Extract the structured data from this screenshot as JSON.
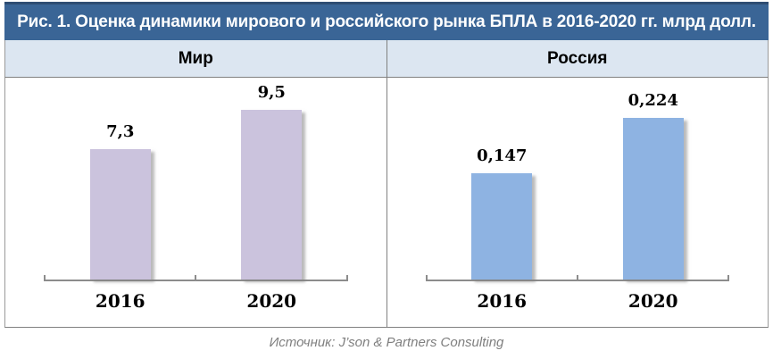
{
  "figure": {
    "title": "Рис. 1. Оценка динамики мирового и российского рынка БПЛА в 2016-2020 гг. млрд долл.",
    "source": "Источник: J’son & Partners Consulting"
  },
  "colors": {
    "title_bar_bg": "#3A6596",
    "title_bar_border": "#2E4D73",
    "title_text": "#FFFFFF",
    "header_bg": "#DCE6F1",
    "grid_border": "#808080",
    "axis": "#8C8C8C",
    "world_bar": "#CBC3DD",
    "russia_bar": "#8EB3E2",
    "source_text": "#7F7F7F"
  },
  "chart_data": [
    {
      "type": "bar",
      "panel": "world",
      "title": "Мир",
      "categories": [
        "2016",
        "2020"
      ],
      "values": [
        7.3,
        9.5
      ],
      "value_labels": [
        "7,3",
        "9,5"
      ],
      "unit": "млрд долл.",
      "bar_color": "#CBC3DD",
      "ylim": [
        0,
        11.3
      ],
      "grid": false,
      "legend": "none"
    },
    {
      "type": "bar",
      "panel": "russia",
      "title": "Россия",
      "categories": [
        "2016",
        "2020"
      ],
      "values": [
        0.147,
        0.224
      ],
      "value_labels": [
        "0,147",
        "0,224"
      ],
      "unit": "млрд долл.",
      "bar_color": "#8EB3E2",
      "ylim": [
        0,
        0.28
      ],
      "grid": false,
      "legend": "none"
    }
  ]
}
